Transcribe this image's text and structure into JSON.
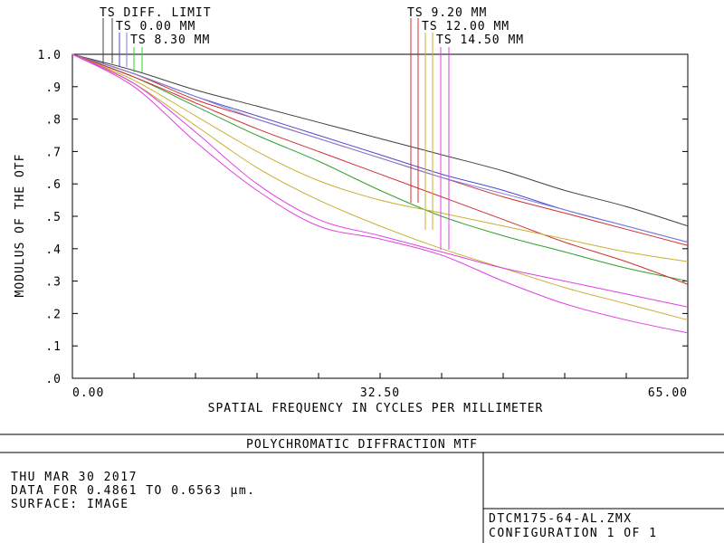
{
  "chart_data": {
    "type": "line",
    "title": "POLYCHROMATIC DIFFRACTION MTF",
    "xlabel": "SPATIAL FREQUENCY IN CYCLES PER MILLIMETER",
    "ylabel": "MODULUS OF THE OTF",
    "xlim": [
      0,
      65
    ],
    "ylim": [
      0,
      1
    ],
    "x_ticks": [
      "0.00",
      "32.50",
      "65.00"
    ],
    "y_ticks": [
      "1.0",
      ".9",
      ".8",
      ".7",
      ".6",
      ".5",
      ".4",
      ".3",
      ".2",
      ".1",
      ".0"
    ],
    "grid": true,
    "legend": [
      "TS DIFF. LIMIT",
      "TS 0.00 MM",
      "TS 8.30 MM",
      "TS 9.20 MM",
      "TS 12.00 MM",
      "TS 14.50 MM"
    ],
    "x": [
      0,
      6.5,
      13,
      19.5,
      26,
      32.5,
      39,
      45.5,
      52,
      58.5,
      65
    ],
    "series": [
      {
        "color": "#404040",
        "values": [
          1.0,
          0.95,
          0.89,
          0.84,
          0.79,
          0.74,
          0.69,
          0.64,
          0.58,
          0.53,
          0.47
        ]
      },
      {
        "color": "#4a4ad0",
        "values": [
          1.0,
          0.94,
          0.87,
          0.81,
          0.75,
          0.69,
          0.63,
          0.58,
          0.52,
          0.47,
          0.42
        ]
      },
      {
        "color": "#d03030",
        "values": [
          1.0,
          0.94,
          0.86,
          0.8,
          0.74,
          0.68,
          0.62,
          0.56,
          0.51,
          0.46,
          0.41
        ]
      },
      {
        "color": "#8080e0",
        "values": [
          1.0,
          0.94,
          0.87,
          0.8,
          0.74,
          0.68,
          0.62,
          0.57,
          0.52,
          0.47,
          0.42
        ]
      },
      {
        "color": "#30a030",
        "values": [
          1.0,
          0.93,
          0.84,
          0.75,
          0.67,
          0.58,
          0.5,
          0.44,
          0.39,
          0.34,
          0.3
        ]
      },
      {
        "color": "#d03030",
        "values": [
          1.0,
          0.93,
          0.85,
          0.77,
          0.7,
          0.63,
          0.56,
          0.49,
          0.42,
          0.36,
          0.29
        ]
      },
      {
        "color": "#c8b030",
        "values": [
          1.0,
          0.92,
          0.81,
          0.7,
          0.61,
          0.55,
          0.51,
          0.47,
          0.43,
          0.39,
          0.36
        ]
      },
      {
        "color": "#c8b030",
        "values": [
          1.0,
          0.91,
          0.78,
          0.65,
          0.55,
          0.47,
          0.4,
          0.34,
          0.28,
          0.23,
          0.18
        ]
      },
      {
        "color": "#e040e0",
        "values": [
          1.0,
          0.91,
          0.76,
          0.6,
          0.49,
          0.44,
          0.39,
          0.34,
          0.3,
          0.26,
          0.22
        ]
      },
      {
        "color": "#e040e0",
        "values": [
          1.0,
          0.9,
          0.73,
          0.58,
          0.47,
          0.43,
          0.38,
          0.3,
          0.23,
          0.18,
          0.14
        ]
      }
    ],
    "legend_colors": {
      "diff_limit": "#404040",
      "ts_0": [
        "#404040",
        "#4a4ad0",
        "#8080e0"
      ],
      "ts_8_30": [
        "#30d030",
        "#30d030"
      ],
      "ts_9_20": [
        "#d03030",
        "#d03030"
      ],
      "ts_12_00": [
        "#c8b030",
        "#c8b030"
      ],
      "ts_14_50": [
        "#e040e0",
        "#e040e0"
      ]
    }
  },
  "info": {
    "date": "THU MAR 30 2017",
    "data_range": "DATA FOR 0.4861 TO 0.6563 µm.",
    "surface": "SURFACE: IMAGE",
    "filename": "DTCM175-64-AL.ZMX",
    "configuration": "CONFIGURATION 1 OF 1"
  }
}
